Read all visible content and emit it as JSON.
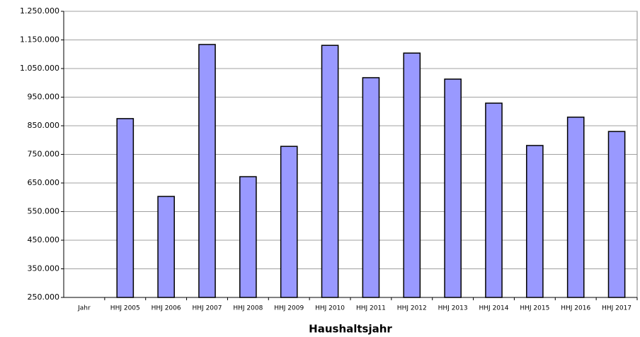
{
  "chart_data": {
    "type": "bar",
    "x_label": "Haushaltsjahr",
    "categories": [
      "Jahr",
      "HHJ 2005",
      "HHJ 2006",
      "HHJ 2007",
      "HHJ 2008",
      "HHJ 2009",
      "HHJ 2010",
      "HHJ 2011",
      "HHJ 2012",
      "HHJ 2013",
      "HHJ 2014",
      "HHJ 2015",
      "HHJ 2016",
      "HHJ 2017"
    ],
    "values": [
      250000,
      875000,
      603000,
      1134000,
      672000,
      778000,
      1131000,
      1018000,
      1104000,
      1013000,
      929000,
      781000,
      880000,
      830000
    ],
    "color": "#9999ff",
    "ylim": [
      250000,
      1250000
    ],
    "yticks": [
      {
        "value": 250000,
        "label": "250.000"
      },
      {
        "value": 350000,
        "label": "350.000"
      },
      {
        "value": 450000,
        "label": "450.000"
      },
      {
        "value": 550000,
        "label": "550.000"
      },
      {
        "value": 650000,
        "label": "650.000"
      },
      {
        "value": 750000,
        "label": "750.000"
      },
      {
        "value": 850000,
        "label": "850.000"
      },
      {
        "value": 950000,
        "label": "950.000"
      },
      {
        "value": 1050000,
        "label": "1.050.000"
      },
      {
        "value": 1150000,
        "label": "1.150.000"
      },
      {
        "value": 1250000,
        "label": "1.250.000"
      }
    ],
    "grid": true
  }
}
